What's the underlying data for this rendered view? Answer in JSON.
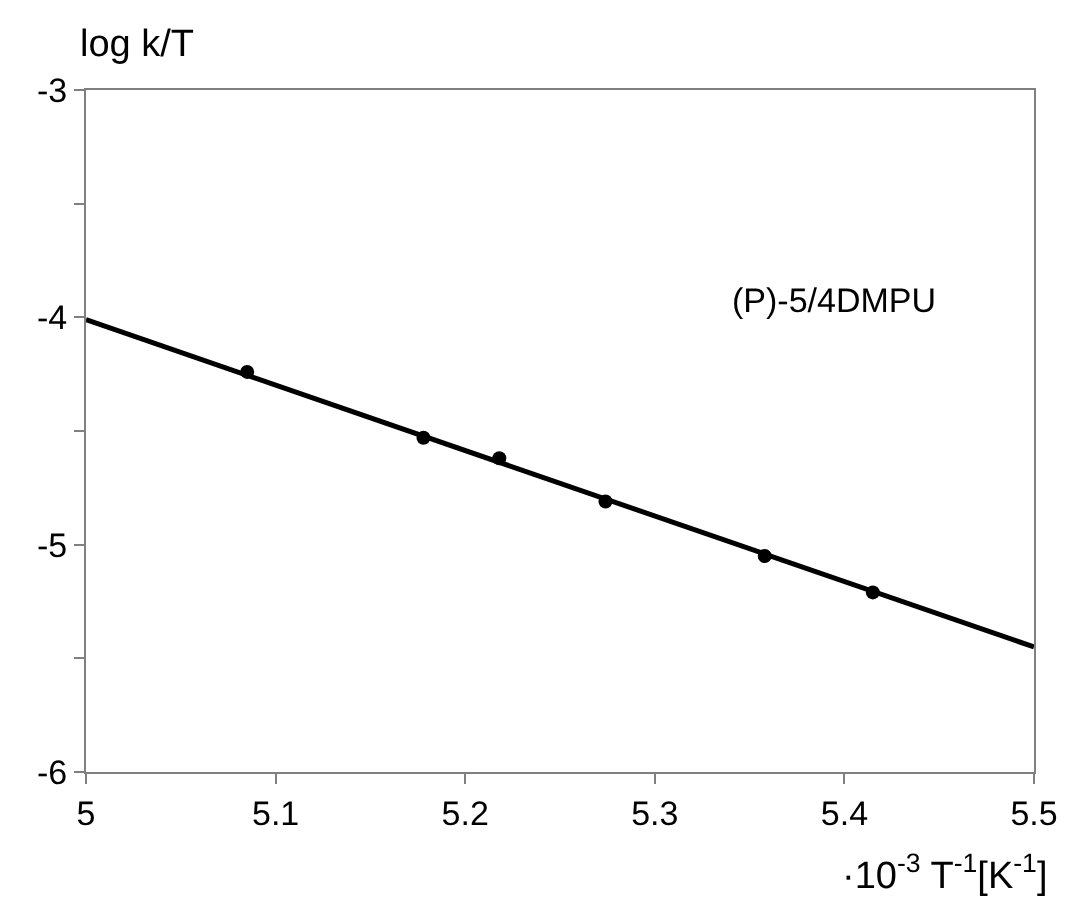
{
  "chart_data": {
    "type": "scatter",
    "xlabel": "·10$^{-3}$ T$^{-1}$[K$^{-1}$]",
    "ylabel": "log k/T",
    "annotations": [
      "(P)-5/4DMPU"
    ],
    "series": [
      {
        "color": "#000000",
        "x": [
          5.085,
          5.178,
          5.218,
          5.274,
          5.358,
          5.415
        ],
        "values": [
          -4.24,
          -4.53,
          -4.62,
          -4.81,
          -5.05,
          -5.21
        ]
      },
      {
        "type": "line",
        "color": "#000000",
        "marker": "none",
        "line_style": "solid",
        "x": [
          5.0,
          5.5
        ],
        "values": [
          -4.01,
          -5.45
        ]
      }
    ],
    "xlim": [
      5.0,
      5.5
    ],
    "xticks": [
      5,
      5.1,
      5.2,
      5.3,
      5.4,
      5.5
    ],
    "ylim": [
      -6,
      -3
    ],
    "yticks": [
      -6,
      {
        "value": -5.5,
        "label": null
      },
      -5,
      {
        "value": -4.5,
        "label": null
      },
      -4,
      {
        "value": -3.5,
        "label": null
      },
      -3
    ],
    "marker": "circle"
  }
}
